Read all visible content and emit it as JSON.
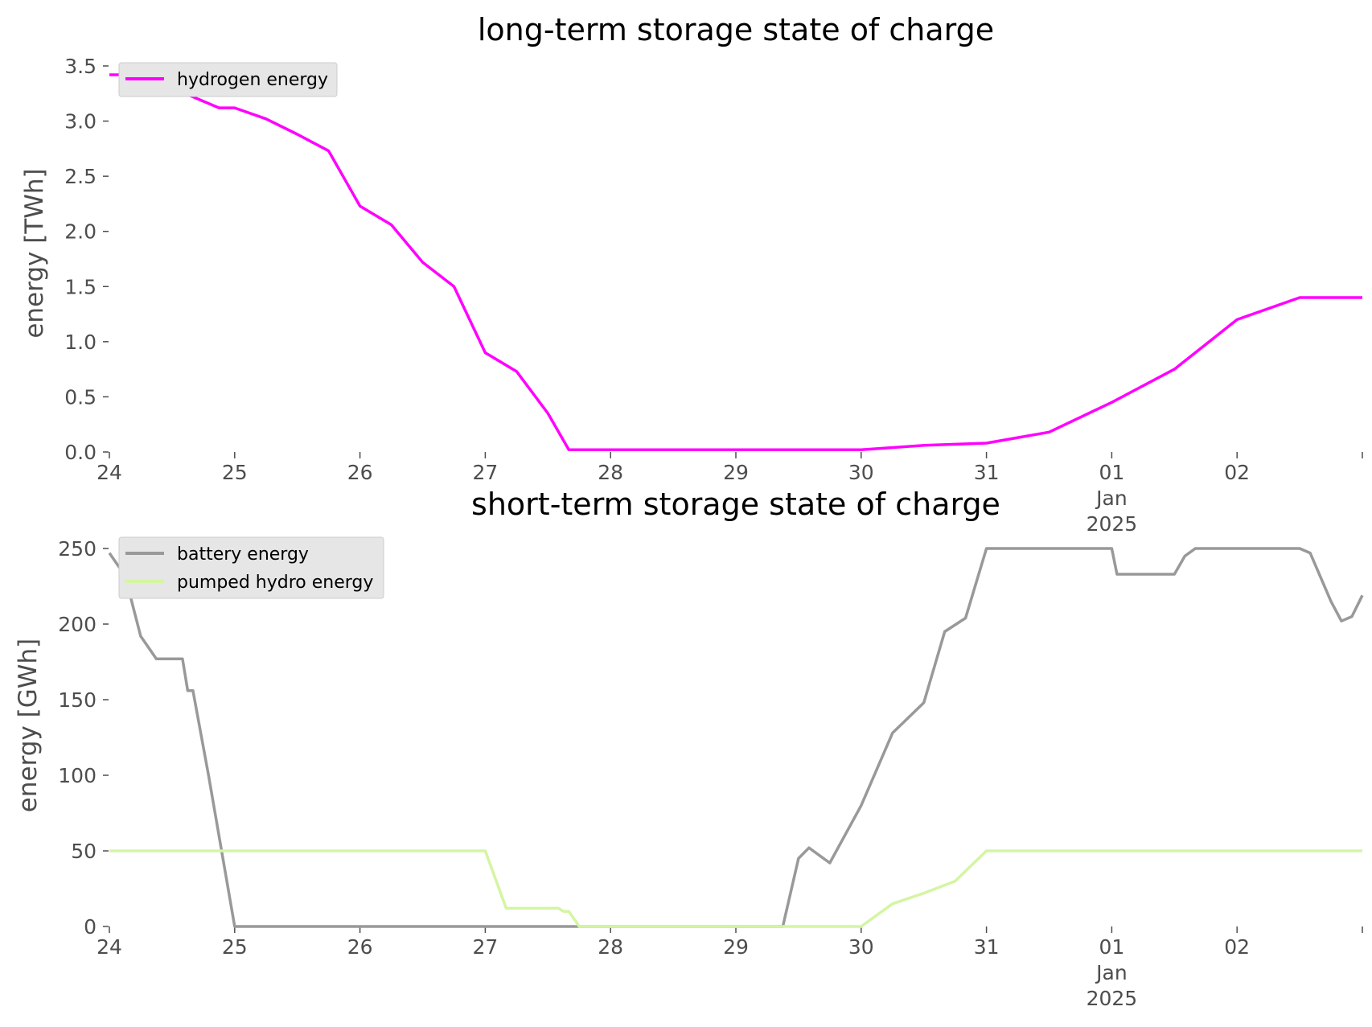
{
  "chart_data": [
    {
      "type": "line",
      "title": "long-term storage state of charge",
      "ylabel": "energy [TWh]",
      "xlabel": "",
      "ylim": [
        0,
        3.5
      ],
      "xlim": [
        "2024-12-24",
        "2025-01-03"
      ],
      "grid": false,
      "legend": "top-left",
      "yticks": [
        "0.0",
        "0.5",
        "1.0",
        "1.5",
        "2.0",
        "2.5",
        "3.0",
        "3.5"
      ],
      "xticks": [
        {
          "date": "2024-12-24",
          "label": "24"
        },
        {
          "date": "2024-12-25",
          "label": "25"
        },
        {
          "date": "2024-12-26",
          "label": "26"
        },
        {
          "date": "2024-12-27",
          "label": "27"
        },
        {
          "date": "2024-12-28",
          "label": "28"
        },
        {
          "date": "2024-12-29",
          "label": "29"
        },
        {
          "date": "2024-12-30",
          "label": "30"
        },
        {
          "date": "2024-12-31",
          "label": "31"
        },
        {
          "date": "2025-01-01",
          "label": "01",
          "sublabel1": "Jan",
          "sublabel2": "2025"
        },
        {
          "date": "2025-01-02",
          "label": "02"
        }
      ],
      "series": [
        {
          "name": "hydrogen energy",
          "color": "#ff00ff",
          "points": [
            [
              "2024-12-24 00:00",
              3.42
            ],
            [
              "2024-12-24 06:00",
              3.42
            ],
            [
              "2024-12-24 12:00",
              3.3
            ],
            [
              "2024-12-24 18:00",
              3.18
            ],
            [
              "2024-12-24 21:00",
              3.12
            ],
            [
              "2024-12-25 00:00",
              3.12
            ],
            [
              "2024-12-25 06:00",
              3.02
            ],
            [
              "2024-12-25 12:00",
              2.88
            ],
            [
              "2024-12-25 18:00",
              2.73
            ],
            [
              "2024-12-26 00:00",
              2.23
            ],
            [
              "2024-12-26 06:00",
              2.06
            ],
            [
              "2024-12-26 12:00",
              1.72
            ],
            [
              "2024-12-26 18:00",
              1.5
            ],
            [
              "2024-12-27 00:00",
              0.9
            ],
            [
              "2024-12-27 06:00",
              0.73
            ],
            [
              "2024-12-27 12:00",
              0.35
            ],
            [
              "2024-12-27 16:00",
              0.02
            ],
            [
              "2024-12-28 00:00",
              0.02
            ],
            [
              "2024-12-29 00:00",
              0.02
            ],
            [
              "2024-12-30 00:00",
              0.02
            ],
            [
              "2024-12-30 12:00",
              0.06
            ],
            [
              "2024-12-31 00:00",
              0.08
            ],
            [
              "2024-12-31 12:00",
              0.18
            ],
            [
              "2025-01-01 00:00",
              0.45
            ],
            [
              "2025-01-01 12:00",
              0.75
            ],
            [
              "2025-01-02 00:00",
              1.2
            ],
            [
              "2025-01-02 12:00",
              1.4
            ],
            [
              "2025-01-03 00:00",
              1.4
            ]
          ]
        }
      ]
    },
    {
      "type": "line",
      "title": "short-term storage state of charge",
      "ylabel": "energy [GWh]",
      "xlabel": "",
      "ylim": [
        0,
        250
      ],
      "xlim": [
        "2024-12-24",
        "2025-01-03"
      ],
      "grid": false,
      "legend": "top-left",
      "yticks": [
        "0",
        "50",
        "100",
        "150",
        "200",
        "250"
      ],
      "xticks": [
        {
          "date": "2024-12-24",
          "label": "24"
        },
        {
          "date": "2024-12-25",
          "label": "25"
        },
        {
          "date": "2024-12-26",
          "label": "26"
        },
        {
          "date": "2024-12-27",
          "label": "27"
        },
        {
          "date": "2024-12-28",
          "label": "28"
        },
        {
          "date": "2024-12-29",
          "label": "29"
        },
        {
          "date": "2024-12-30",
          "label": "30"
        },
        {
          "date": "2024-12-31",
          "label": "31"
        },
        {
          "date": "2025-01-01",
          "label": "01",
          "sublabel1": "Jan",
          "sublabel2": "2025"
        },
        {
          "date": "2025-01-02",
          "label": "02"
        }
      ],
      "series": [
        {
          "name": "battery energy",
          "color": "#999999",
          "points": [
            [
              "2024-12-24 00:00",
              247
            ],
            [
              "2024-12-24 03:00",
              232
            ],
            [
              "2024-12-24 06:00",
              192
            ],
            [
              "2024-12-24 09:00",
              177
            ],
            [
              "2024-12-24 14:00",
              177
            ],
            [
              "2024-12-24 15:00",
              156
            ],
            [
              "2024-12-24 16:00",
              156
            ],
            [
              "2024-12-24 19:00",
              100
            ],
            [
              "2024-12-24 22:00",
              40
            ],
            [
              "2024-12-25 00:00",
              0
            ],
            [
              "2024-12-26 00:00",
              0
            ],
            [
              "2024-12-27 00:00",
              0
            ],
            [
              "2024-12-28 00:00",
              0
            ],
            [
              "2024-12-29 00:00",
              0
            ],
            [
              "2024-12-29 09:00",
              0
            ],
            [
              "2024-12-29 12:00",
              45
            ],
            [
              "2024-12-29 14:00",
              52
            ],
            [
              "2024-12-29 18:00",
              42
            ],
            [
              "2024-12-30 00:00",
              80
            ],
            [
              "2024-12-30 06:00",
              128
            ],
            [
              "2024-12-30 12:00",
              148
            ],
            [
              "2024-12-30 16:00",
              195
            ],
            [
              "2024-12-30 20:00",
              204
            ],
            [
              "2024-12-31 00:00",
              250
            ],
            [
              "2025-01-01 00:00",
              250
            ],
            [
              "2025-01-01 01:00",
              233
            ],
            [
              "2025-01-01 12:00",
              233
            ],
            [
              "2025-01-01 14:00",
              245
            ],
            [
              "2025-01-01 16:00",
              250
            ],
            [
              "2025-01-02 12:00",
              250
            ],
            [
              "2025-01-02 14:00",
              247
            ],
            [
              "2025-01-02 18:00",
              215
            ],
            [
              "2025-01-02 20:00",
              202
            ],
            [
              "2025-01-02 22:00",
              205
            ],
            [
              "2025-01-03 00:00",
              219
            ]
          ]
        },
        {
          "name": "pumped hydro energy",
          "color": "#d4f5a2",
          "points": [
            [
              "2024-12-24 00:00",
              50
            ],
            [
              "2024-12-25 00:00",
              50
            ],
            [
              "2024-12-26 00:00",
              50
            ],
            [
              "2024-12-27 00:00",
              50
            ],
            [
              "2024-12-27 04:00",
              12
            ],
            [
              "2024-12-27 14:00",
              12
            ],
            [
              "2024-12-27 15:00",
              10
            ],
            [
              "2024-12-27 16:00",
              10
            ],
            [
              "2024-12-27 18:00",
              0
            ],
            [
              "2024-12-28 00:00",
              0
            ],
            [
              "2024-12-29 00:00",
              0
            ],
            [
              "2024-12-30 00:00",
              0
            ],
            [
              "2024-12-30 06:00",
              15
            ],
            [
              "2024-12-30 12:00",
              22
            ],
            [
              "2024-12-30 18:00",
              30
            ],
            [
              "2024-12-31 00:00",
              50
            ],
            [
              "2025-01-01 00:00",
              50
            ],
            [
              "2025-01-02 00:00",
              50
            ],
            [
              "2025-01-03 00:00",
              50
            ]
          ]
        }
      ]
    }
  ]
}
